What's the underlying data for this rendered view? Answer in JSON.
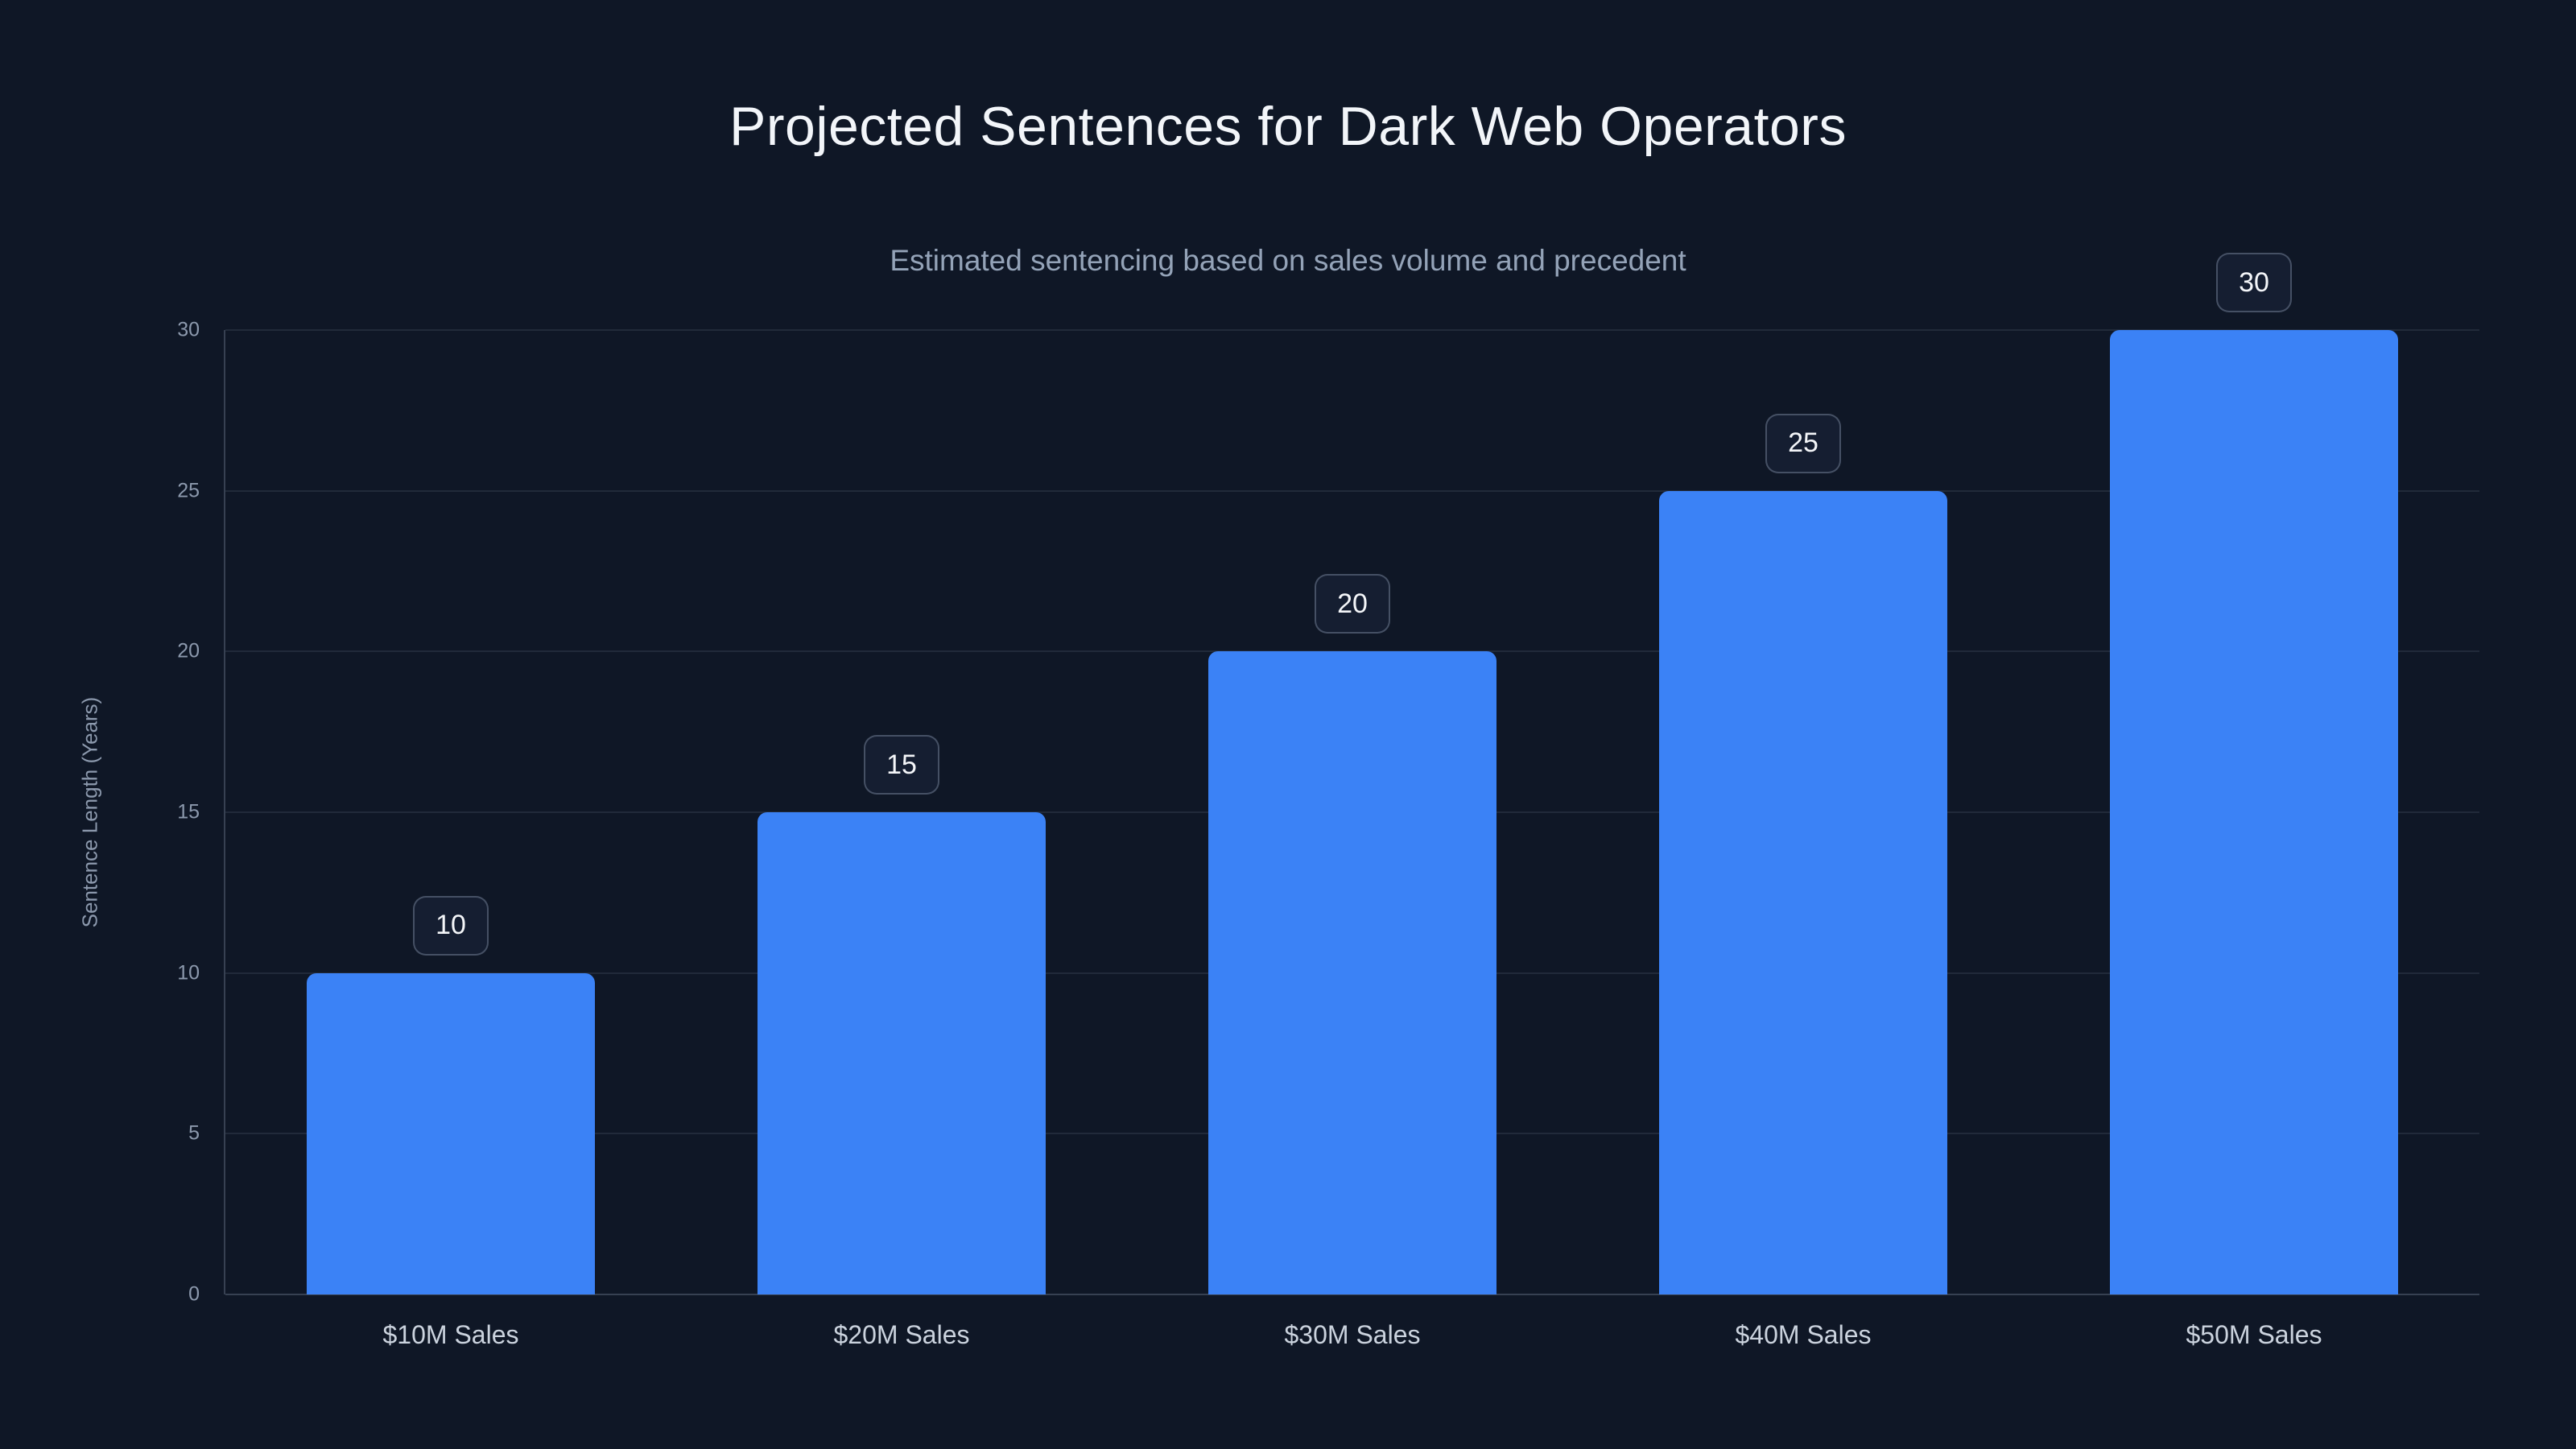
{
  "page": {
    "background": "#0f1726"
  },
  "chart_data": {
    "type": "bar",
    "title": "Projected Sentences for Dark Web Operators",
    "subtitle": "Estimated sentencing based on sales volume and precedent",
    "categories": [
      "$10M Sales",
      "$20M Sales",
      "$30M Sales",
      "$40M Sales",
      "$50M Sales"
    ],
    "values": [
      10,
      15,
      20,
      25,
      30
    ],
    "value_labels": [
      "10",
      "15",
      "20",
      "25",
      "30"
    ],
    "xlabel": "",
    "ylabel": "Sentence Length (Years)",
    "yticks": [
      0,
      5,
      10,
      15,
      20,
      25,
      30
    ],
    "ylim": [
      0,
      30
    ],
    "grid": "horizontal",
    "legend": "none",
    "bar_color": "#3b82f6",
    "title_color": "#f2f5f9",
    "subtitle_color": "#94a3b8",
    "axis_text_color": "#8c99ad",
    "category_text_color": "#cbd3de",
    "badge_border_color": "#46536a",
    "badge_background": "#151e31"
  }
}
